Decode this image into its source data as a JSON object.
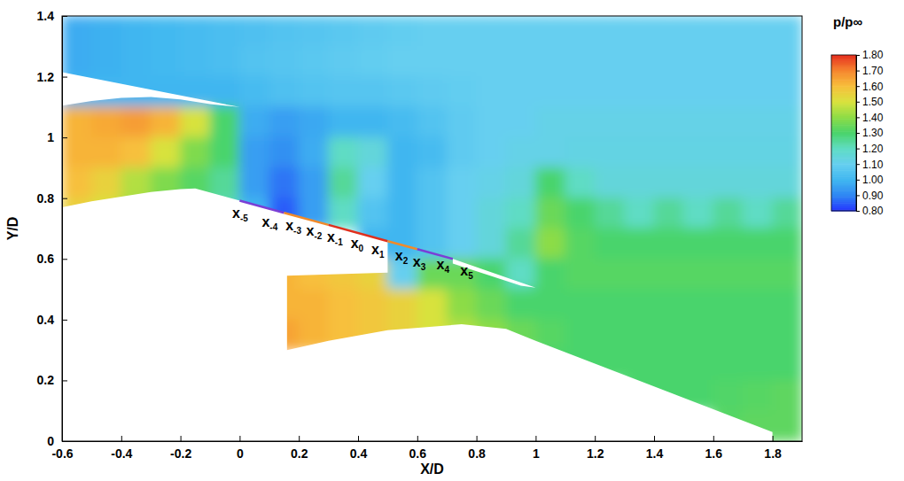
{
  "chart_data": {
    "type": "contour",
    "x_label": "X/D",
    "y_label": "Y/D",
    "xlim": [
      -0.6,
      1.9
    ],
    "ylim": [
      0,
      1.4
    ],
    "xticks": [
      -0.6,
      -0.4,
      -0.2,
      0,
      0.2,
      0.4,
      0.6,
      0.8,
      1,
      1.2,
      1.4,
      1.6,
      1.8
    ],
    "yticks": [
      0,
      0.2,
      0.4,
      0.6,
      0.8,
      1,
      1.2,
      1.4
    ],
    "heatmap": {
      "x_edges": [
        -0.6,
        -0.5,
        -0.4,
        -0.3,
        -0.2,
        -0.1,
        0,
        0.1,
        0.2,
        0.3,
        0.4,
        0.5,
        0.6,
        0.7,
        0.8,
        0.9,
        1,
        1.1,
        1.2,
        1.3,
        1.4,
        1.5,
        1.6,
        1.7,
        1.8,
        1.9
      ],
      "y_edges": [
        1.4,
        1.3,
        1.2,
        1.1,
        1,
        0.9,
        0.8,
        0.7,
        0.6,
        0.5,
        0.4,
        0.3,
        0.2,
        0.1,
        0
      ],
      "values": [
        [
          0.98,
          0.99,
          1.0,
          1.01,
          1.02,
          1.03,
          1.04,
          1.05,
          1.06,
          1.07,
          1.08,
          1.09,
          1.1,
          1.1,
          1.1,
          1.1,
          1.1,
          1.1,
          1.1,
          1.1,
          1.1,
          1.1,
          1.1,
          1.1,
          1.1
        ],
        [
          0.98,
          0.99,
          1.0,
          1.01,
          1.02,
          1.03,
          1.05,
          1.06,
          1.07,
          1.08,
          1.09,
          1.1,
          1.1,
          1.1,
          1.1,
          1.1,
          1.1,
          1.1,
          1.1,
          1.1,
          1.1,
          1.1,
          1.1,
          1.1,
          1.1
        ],
        [
          1.0,
          1.0,
          1.0,
          1.0,
          1.0,
          1.0,
          1.02,
          1.04,
          1.05,
          1.06,
          1.06,
          1.07,
          1.08,
          1.09,
          1.1,
          1.1,
          1.1,
          1.1,
          1.1,
          1.1,
          1.1,
          1.1,
          1.1,
          1.1,
          1.1
        ],
        [
          1.62,
          1.64,
          1.66,
          1.62,
          1.5,
          1.3,
          0.98,
          0.95,
          0.97,
          1.0,
          1.0,
          1.02,
          1.05,
          1.08,
          1.1,
          1.1,
          1.12,
          1.12,
          1.12,
          1.12,
          1.12,
          1.12,
          1.12,
          1.12,
          1.12
        ],
        [
          1.62,
          1.62,
          1.6,
          1.5,
          1.38,
          1.3,
          0.95,
          0.92,
          0.98,
          1.2,
          1.15,
          1.0,
          1.02,
          1.08,
          1.1,
          1.12,
          1.12,
          1.13,
          1.13,
          1.13,
          1.13,
          1.13,
          1.13,
          1.13,
          1.13
        ],
        [
          1.6,
          1.55,
          1.45,
          1.38,
          1.32,
          1.25,
          0.95,
          0.88,
          0.95,
          1.25,
          1.1,
          1.0,
          1.05,
          1.1,
          1.12,
          1.15,
          1.3,
          1.2,
          1.15,
          1.15,
          1.15,
          1.15,
          1.15,
          1.15,
          1.15
        ],
        [
          1.55,
          1.5,
          1.42,
          1.35,
          1.3,
          1.22,
          1.0,
          0.85,
          0.95,
          1.2,
          1.05,
          1.0,
          1.05,
          1.1,
          1.15,
          1.2,
          1.35,
          1.3,
          1.25,
          1.2,
          1.25,
          1.2,
          1.25,
          1.2,
          1.25
        ],
        [
          null,
          null,
          null,
          null,
          null,
          null,
          null,
          null,
          null,
          null,
          1.0,
          1.0,
          1.05,
          1.1,
          1.15,
          1.25,
          1.4,
          1.32,
          1.3,
          1.3,
          1.3,
          1.3,
          1.3,
          1.3,
          1.3
        ],
        [
          null,
          null,
          null,
          null,
          null,
          null,
          null,
          1.62,
          1.6,
          1.58,
          1.55,
          1.1,
          1.35,
          1.35,
          1.3,
          1.2,
          1.3,
          1.32,
          1.32,
          1.32,
          1.32,
          1.32,
          1.32,
          1.32,
          1.32
        ],
        [
          null,
          null,
          null,
          null,
          null,
          null,
          null,
          1.62,
          1.62,
          1.6,
          1.58,
          1.55,
          1.5,
          1.4,
          1.35,
          1.3,
          1.3,
          1.3,
          1.3,
          1.3,
          1.3,
          1.3,
          1.3,
          1.3,
          1.3
        ],
        [
          null,
          null,
          null,
          null,
          null,
          null,
          null,
          1.65,
          1.62,
          1.6,
          1.58,
          1.55,
          1.5,
          1.45,
          1.4,
          1.35,
          1.32,
          1.3,
          1.3,
          1.3,
          1.3,
          1.3,
          1.3,
          1.3,
          1.3
        ],
        [
          null,
          null,
          null,
          null,
          null,
          null,
          null,
          null,
          null,
          null,
          null,
          null,
          null,
          null,
          null,
          null,
          1.3,
          1.3,
          1.3,
          1.3,
          1.3,
          1.3,
          1.3,
          1.3,
          1.3
        ],
        [
          null,
          null,
          null,
          null,
          null,
          null,
          null,
          null,
          null,
          null,
          null,
          null,
          null,
          null,
          null,
          null,
          null,
          null,
          null,
          1.3,
          1.3,
          1.3,
          1.31,
          1.32,
          1.33
        ],
        [
          null,
          null,
          null,
          null,
          null,
          null,
          null,
          null,
          null,
          null,
          null,
          null,
          null,
          null,
          null,
          null,
          null,
          null,
          null,
          null,
          null,
          null,
          1.32,
          1.33,
          1.33
        ]
      ]
    },
    "colorbar": {
      "title": "p/p∞",
      "range": [
        0.8,
        1.8
      ],
      "ticks": [
        {
          "value": 1.8,
          "label": "1.80"
        },
        {
          "value": 1.7,
          "label": "1.70"
        },
        {
          "value": 1.6,
          "label": "1.60"
        },
        {
          "value": 1.5,
          "label": "1.50"
        },
        {
          "value": 1.4,
          "label": "1.40"
        },
        {
          "value": 1.3,
          "label": "1.30"
        },
        {
          "value": 1.2,
          "label": "1.20"
        },
        {
          "value": 1.1,
          "label": "1.10"
        },
        {
          "value": 1.0,
          "label": "1.00"
        },
        {
          "value": 0.9,
          "label": "0.90"
        },
        {
          "value": 0.8,
          "label": "0.80"
        }
      ]
    },
    "annotations": [
      {
        "text": "x",
        "subscript": "-5",
        "x": -0.01,
        "y": 0.75
      },
      {
        "text": "x",
        "subscript": "-4",
        "x": 0.09,
        "y": 0.72
      },
      {
        "text": "x",
        "subscript": "-3",
        "x": 0.17,
        "y": 0.71
      },
      {
        "text": "x",
        "subscript": "-2",
        "x": 0.24,
        "y": 0.69
      },
      {
        "text": "x",
        "subscript": "-1",
        "x": 0.31,
        "y": 0.67
      },
      {
        "text": "x",
        "subscript": "0",
        "x": 0.39,
        "y": 0.65
      },
      {
        "text": "x",
        "subscript": "1",
        "x": 0.46,
        "y": 0.63
      },
      {
        "text": "x",
        "subscript": "2",
        "x": 0.54,
        "y": 0.61
      },
      {
        "text": "x",
        "subscript": "3",
        "x": 0.6,
        "y": 0.59
      },
      {
        "text": "x",
        "subscript": "4",
        "x": 0.68,
        "y": 0.58
      },
      {
        "text": "x",
        "subscript": "5",
        "x": 0.76,
        "y": 0.56
      }
    ]
  }
}
